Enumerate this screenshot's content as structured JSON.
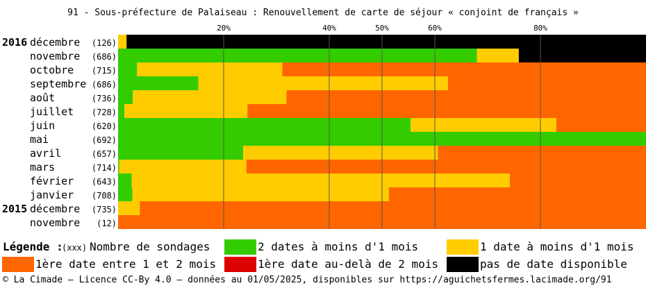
{
  "chart_data": {
    "type": "bar",
    "orientation": "horizontal-stacked-percent",
    "title": "91 - Sous-préfecture de Palaiseau : Renouvellement de carte de séjour « conjoint de français »",
    "xlim": [
      0,
      100
    ],
    "xticks": [
      20,
      40,
      50,
      60,
      80
    ],
    "xtick_labels": [
      "20%",
      "40%",
      "50%",
      "60%",
      "80%"
    ],
    "grid": true,
    "rows": [
      {
        "year": "2016",
        "month": "décembre",
        "count": "(126)",
        "values": [
          0,
          1.6,
          0,
          0,
          98.4
        ]
      },
      {
        "year": "",
        "month": "novembre",
        "count": "(686)",
        "values": [
          68.0,
          7.9,
          0,
          0,
          24.1
        ]
      },
      {
        "year": "",
        "month": "octobre",
        "count": "(715)",
        "values": [
          3.6,
          27.5,
          68.9,
          0,
          0
        ]
      },
      {
        "year": "",
        "month": "septembre",
        "count": "(686)",
        "values": [
          15.2,
          47.3,
          37.5,
          0,
          0
        ]
      },
      {
        "year": "",
        "month": "août",
        "count": "(736)",
        "values": [
          2.8,
          29.1,
          68.1,
          0,
          0
        ]
      },
      {
        "year": "",
        "month": "juillet",
        "count": "(728)",
        "values": [
          1.2,
          23.3,
          75.5,
          0,
          0
        ]
      },
      {
        "year": "",
        "month": "juin",
        "count": "(620)",
        "values": [
          55.4,
          27.6,
          17.0,
          0,
          0
        ]
      },
      {
        "year": "",
        "month": "mai",
        "count": "(692)",
        "values": [
          100,
          0,
          0,
          0,
          0
        ]
      },
      {
        "year": "",
        "month": "avril",
        "count": "(657)",
        "values": [
          23.7,
          36.9,
          39.4,
          0,
          0
        ]
      },
      {
        "year": "",
        "month": "mars",
        "count": "(714)",
        "values": [
          0.2,
          24.1,
          75.7,
          0,
          0
        ]
      },
      {
        "year": "",
        "month": "février",
        "count": "(643)",
        "values": [
          2.6,
          71.6,
          25.8,
          0,
          0
        ]
      },
      {
        "year": "",
        "month": "janvier",
        "count": "(708)",
        "values": [
          2.7,
          48.6,
          48.7,
          0,
          0
        ]
      },
      {
        "year": "2015",
        "month": "décembre",
        "count": "(735)",
        "values": [
          0,
          4.1,
          95.9,
          0,
          0
        ]
      },
      {
        "year": "",
        "month": "novembre",
        "count": "(12)",
        "values": [
          0,
          0,
          100,
          0,
          0
        ]
      }
    ],
    "series": [
      {
        "name": "2 dates à moins d'1 mois",
        "color": "#33cc00"
      },
      {
        "name": "1 date à moins d'1 mois",
        "color": "#ffcc00"
      },
      {
        "name": "1ère date entre 1 et 2 mois",
        "color": "#ff6600"
      },
      {
        "name": "1ère date au-delà de 2 mois",
        "color": "#dd0000"
      },
      {
        "name": "pas de date disponible",
        "color": "#000000"
      }
    ]
  },
  "legend": {
    "label": "Légende :",
    "count_hint": "(xxx)",
    "count_label": "Nombre de sondages"
  },
  "footer": "© La Cimade — Licence CC-By 4.0 — données au 01/05/2025, disponibles sur https://aguichetsfermes.lacimade.org/91"
}
